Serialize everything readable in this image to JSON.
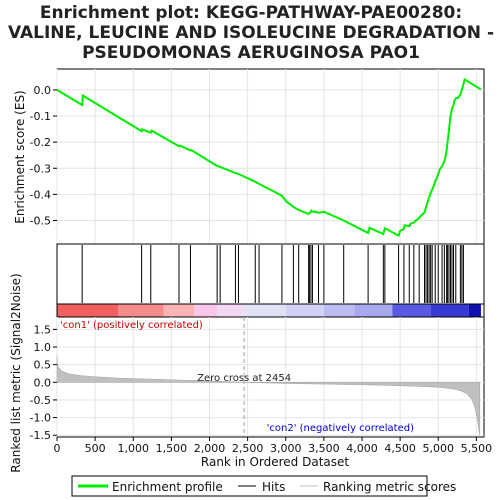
{
  "chart_data": {
    "type": "line",
    "title_lines": [
      "Enrichment plot: KEGG-PATHWAY-PAE00280:",
      "VALINE, LEUCINE AND ISOLEUCINE DEGRADATION -",
      "PSEUDOMONAS AERUGINOSA PAO1"
    ],
    "xlabel": "Rank in Ordered Dataset",
    "xlim": [
      0,
      5600
    ],
    "x_ticks": [
      0,
      500,
      1000,
      1500,
      2000,
      2500,
      3000,
      3500,
      4000,
      4500,
      5000,
      5500
    ],
    "x_tick_labels": [
      "0",
      "500",
      "1,000",
      "1,500",
      "2,000",
      "2,500",
      "3,000",
      "3,500",
      "4,000",
      "4,500",
      "5,000",
      "5,500"
    ],
    "enrichment_panel": {
      "ylabel": "Enrichment score (ES)",
      "ylim": [
        -0.59,
        0.08
      ],
      "y_ticks": [
        0.0,
        -0.1,
        -0.2,
        -0.3,
        -0.4,
        -0.5
      ],
      "y_tick_labels": [
        "0.0",
        "-0.1",
        "-0.2",
        "-0.3",
        "-0.4",
        "-0.5"
      ],
      "series_name": "Enrichment profile",
      "color": "#00ee00",
      "points": [
        [
          0,
          0.0
        ],
        [
          330,
          -0.058
        ],
        [
          340,
          -0.022
        ],
        [
          1110,
          -0.158
        ],
        [
          1115,
          -0.151
        ],
        [
          1230,
          -0.164
        ],
        [
          1240,
          -0.156
        ],
        [
          1600,
          -0.216
        ],
        [
          1610,
          -0.213
        ],
        [
          1750,
          -0.232
        ],
        [
          1760,
          -0.23
        ],
        [
          2100,
          -0.291
        ],
        [
          2140,
          -0.295
        ],
        [
          2340,
          -0.318
        ],
        [
          2380,
          -0.322
        ],
        [
          2600,
          -0.352
        ],
        [
          2650,
          -0.36
        ],
        [
          2950,
          -0.405
        ],
        [
          3000,
          -0.425
        ],
        [
          3100,
          -0.448
        ],
        [
          3170,
          -0.46
        ],
        [
          3300,
          -0.475
        ],
        [
          3310,
          -0.47
        ],
        [
          3330,
          -0.468
        ],
        [
          3335,
          -0.462
        ],
        [
          3350,
          -0.465
        ],
        [
          3400,
          -0.468
        ],
        [
          3430,
          -0.47
        ],
        [
          3500,
          -0.467
        ],
        [
          3520,
          -0.469
        ],
        [
          3760,
          -0.5
        ],
        [
          3780,
          -0.503
        ],
        [
          4080,
          -0.548
        ],
        [
          4100,
          -0.528
        ],
        [
          4280,
          -0.552
        ],
        [
          4300,
          -0.53
        ],
        [
          4480,
          -0.558
        ],
        [
          4500,
          -0.54
        ],
        [
          4550,
          -0.532
        ],
        [
          4560,
          -0.518
        ],
        [
          4620,
          -0.522
        ],
        [
          4640,
          -0.512
        ],
        [
          4680,
          -0.508
        ],
        [
          4700,
          -0.502
        ],
        [
          4750,
          -0.49
        ],
        [
          4770,
          -0.482
        ],
        [
          4820,
          -0.47
        ],
        [
          4840,
          -0.448
        ],
        [
          4860,
          -0.43
        ],
        [
          4880,
          -0.412
        ],
        [
          4900,
          -0.395
        ],
        [
          4920,
          -0.382
        ],
        [
          4940,
          -0.368
        ],
        [
          4960,
          -0.35
        ],
        [
          4980,
          -0.338
        ],
        [
          5000,
          -0.322
        ],
        [
          5020,
          -0.304
        ],
        [
          5050,
          -0.292
        ],
        [
          5080,
          -0.272
        ],
        [
          5100,
          -0.248
        ],
        [
          5110,
          -0.23
        ],
        [
          5120,
          -0.205
        ],
        [
          5130,
          -0.18
        ],
        [
          5140,
          -0.155
        ],
        [
          5150,
          -0.128
        ],
        [
          5160,
          -0.105
        ],
        [
          5170,
          -0.088
        ],
        [
          5180,
          -0.072
        ],
        [
          5200,
          -0.058
        ],
        [
          5215,
          -0.04
        ],
        [
          5230,
          -0.032
        ],
        [
          5260,
          -0.03
        ],
        [
          5290,
          -0.018
        ],
        [
          5310,
          0.002
        ],
        [
          5330,
          0.02
        ],
        [
          5345,
          0.04
        ],
        [
          5560,
          0.002
        ]
      ]
    },
    "hits_panel": {
      "series_name": "Hits",
      "hit_ranks": [
        330,
        1110,
        1230,
        1600,
        1750,
        2100,
        2140,
        2340,
        2380,
        2600,
        2650,
        2950,
        3100,
        3170,
        3300,
        3310,
        3330,
        3350,
        3430,
        3500,
        3760,
        4080,
        4280,
        4300,
        4480,
        4550,
        4620,
        4680,
        4750,
        4820,
        4840,
        4860,
        4880,
        4900,
        4920,
        4960,
        5000,
        5050,
        5080,
        5110,
        5120,
        5140,
        5160,
        5180,
        5200,
        5230,
        5290,
        5310,
        5330
      ]
    },
    "ranking_panel": {
      "ylabel": "Ranked list metric (Signal2Noise)",
      "ylim": [
        -1.55,
        1.85
      ],
      "y_ticks": [
        1.5,
        1.0,
        0.5,
        0.0,
        -0.5,
        -1.0,
        -1.5
      ],
      "y_tick_labels": [
        "1.5",
        "1.0",
        "0.5",
        "0.0",
        "-0.5",
        "-1.0",
        "-1.5"
      ],
      "series_name": "Ranking metric scores",
      "metric_curve": [
        [
          0,
          0.75
        ],
        [
          5,
          0.55
        ],
        [
          20,
          0.42
        ],
        [
          60,
          0.32
        ],
        [
          150,
          0.24
        ],
        [
          300,
          0.19
        ],
        [
          500,
          0.155
        ],
        [
          800,
          0.12
        ],
        [
          1200,
          0.09
        ],
        [
          1600,
          0.065
        ],
        [
          2000,
          0.04
        ],
        [
          2454,
          0.0
        ],
        [
          3000,
          -0.03
        ],
        [
          3600,
          -0.055
        ],
        [
          4200,
          -0.08
        ],
        [
          4700,
          -0.11
        ],
        [
          5000,
          -0.14
        ],
        [
          5200,
          -0.19
        ],
        [
          5300,
          -0.24
        ],
        [
          5380,
          -0.33
        ],
        [
          5440,
          -0.48
        ],
        [
          5480,
          -0.7
        ],
        [
          5510,
          -1.0
        ],
        [
          5530,
          -1.3
        ],
        [
          5545,
          -1.5
        ]
      ],
      "zero_cross_rank": 2454,
      "zero_cross_label": "Zero cross at 2454",
      "pos_label": "'con1' (positively correlated)",
      "neg_label": "'con2' (negatively correlated)"
    },
    "gradient_bar": [
      {
        "start": 0,
        "end": 800,
        "color": "#f06060"
      },
      {
        "start": 800,
        "end": 1400,
        "color": "#f48a8a"
      },
      {
        "start": 1400,
        "end": 1800,
        "color": "#f8b4b4"
      },
      {
        "start": 1800,
        "end": 2100,
        "color": "#f8c6e8"
      },
      {
        "start": 2100,
        "end": 2454,
        "color": "#f2d8f2"
      },
      {
        "start": 2454,
        "end": 3000,
        "color": "#e2e2f6"
      },
      {
        "start": 3000,
        "end": 3500,
        "color": "#d2d2f6"
      },
      {
        "start": 3500,
        "end": 3900,
        "color": "#bcbcf4"
      },
      {
        "start": 3900,
        "end": 4400,
        "color": "#a8a8ee"
      },
      {
        "start": 4400,
        "end": 4900,
        "color": "#5a5ae0"
      },
      {
        "start": 4900,
        "end": 5400,
        "color": "#3838d2"
      },
      {
        "start": 5400,
        "end": 5560,
        "color": "#1010b0"
      }
    ],
    "legend": {
      "placement": "bottom",
      "entries": [
        {
          "name": "Enrichment profile",
          "color": "#00ee00"
        },
        {
          "name": "Hits",
          "color": "#000000"
        },
        {
          "name": "Ranking metric scores",
          "color": "#c0c0c0"
        }
      ]
    }
  }
}
